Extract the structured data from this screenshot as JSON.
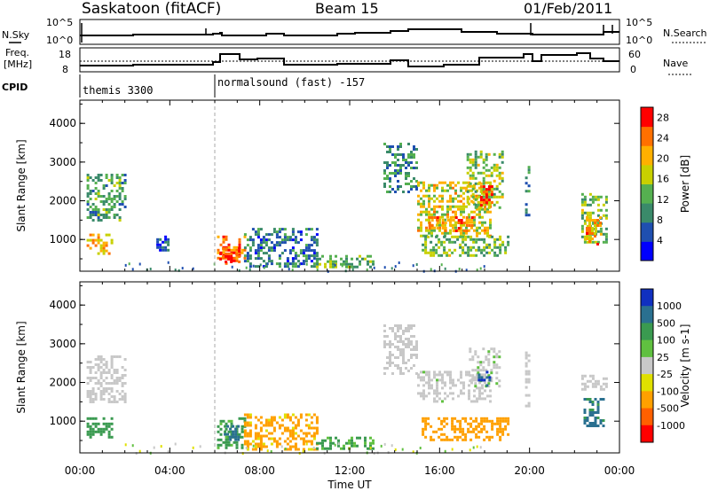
{
  "header": {
    "title": "Saskatoon (fitACF)",
    "beam": "Beam 15",
    "date": "01/Feb/2011"
  },
  "noise_panel": {
    "left_label": "N.Sky",
    "right_label": "N.Search",
    "left_ticks": [
      "10^5",
      "10^0"
    ],
    "right_ticks": [
      "10^5",
      "10^0"
    ]
  },
  "freq_panel": {
    "left_label_line1": "Freq.",
    "left_label_line2": "[MHz]",
    "right_label": "Nave",
    "left_ticks": [
      "18",
      "8"
    ],
    "right_ticks": [
      "60",
      "0"
    ]
  },
  "cpid": {
    "label": "CPID",
    "segments": [
      {
        "start_hour": 0.0,
        "name": "themis 3300"
      },
      {
        "start_hour": 6.0,
        "name": "normalsound (fast) -157"
      }
    ]
  },
  "time_axis": {
    "label": "Time UT",
    "ticks": [
      "00:00",
      "04:00",
      "08:00",
      "12:00",
      "16:00",
      "20:00",
      "00:00"
    ],
    "range_hours": [
      0,
      24
    ]
  },
  "chart_data": [
    {
      "type": "heatmap",
      "quantity": "Power",
      "ylabel": "Slant Range [km]",
      "yticks": [
        "1000",
        "2000",
        "3000",
        "4000"
      ],
      "ylim": [
        180,
        4600
      ],
      "colorbar": {
        "label": "Power [dB]",
        "ticks": [
          "4",
          "8",
          "12",
          "16",
          "20",
          "24",
          "28"
        ],
        "range": [
          0,
          30
        ],
        "colors": [
          "#0000ff",
          "#1f4fb0",
          "#3a8a6a",
          "#55b050",
          "#c8d000",
          "#ffb000",
          "#ff7000",
          "#ff0000"
        ]
      },
      "regions": [
        {
          "t": [
            0.3,
            2.0
          ],
          "r": [
            1500,
            2700
          ],
          "v": 11
        },
        {
          "t": [
            0.3,
            1.4
          ],
          "r": [
            650,
            1150
          ],
          "v": 20
        },
        {
          "t": [
            3.4,
            3.9
          ],
          "r": [
            700,
            1100
          ],
          "v": 6
        },
        {
          "t": [
            6.1,
            7.3
          ],
          "r": [
            350,
            1100
          ],
          "v": 24
        },
        {
          "t": [
            6.2,
            7.1
          ],
          "r": [
            450,
            800
          ],
          "v": 28
        },
        {
          "t": [
            7.3,
            10.5
          ],
          "r": [
            300,
            1300
          ],
          "v": 8
        },
        {
          "t": [
            10.5,
            13.0
          ],
          "r": [
            300,
            600
          ],
          "v": 13
        },
        {
          "t": [
            13.5,
            15.0
          ],
          "r": [
            2200,
            3500
          ],
          "v": 9
        },
        {
          "t": [
            15.0,
            18.2
          ],
          "r": [
            1100,
            2500
          ],
          "v": 18
        },
        {
          "t": [
            15.5,
            17.5
          ],
          "r": [
            1200,
            1600
          ],
          "v": 24
        },
        {
          "t": [
            17.2,
            18.8
          ],
          "r": [
            1800,
            3300
          ],
          "v": 15
        },
        {
          "t": [
            17.8,
            18.3
          ],
          "r": [
            1900,
            2400
          ],
          "v": 28
        },
        {
          "t": [
            15.2,
            19.0
          ],
          "r": [
            600,
            1100
          ],
          "v": 14
        },
        {
          "t": [
            19.8,
            20.0
          ],
          "r": [
            1400,
            2900
          ],
          "v": 10
        },
        {
          "t": [
            22.3,
            23.4
          ],
          "r": [
            900,
            2200
          ],
          "v": 14
        },
        {
          "t": [
            22.5,
            23.2
          ],
          "r": [
            900,
            1600
          ],
          "v": 22
        }
      ]
    },
    {
      "type": "heatmap",
      "quantity": "Velocity",
      "ylabel": "Slant Range [km]",
      "yticks": [
        "1000",
        "2000",
        "3000",
        "4000"
      ],
      "ylim": [
        180,
        4600
      ],
      "colorbar": {
        "label": "Velocity [m s-1]",
        "ticks": [
          "1000",
          "500",
          "100",
          "25",
          "-25",
          "-100",
          "-500",
          "-1000"
        ],
        "colors": [
          "#1030c0",
          "#2a7090",
          "#3a9a50",
          "#60c040",
          "#c8c8c8",
          "#e0e000",
          "#ffa000",
          "#ff6000",
          "#ff0000"
        ]
      },
      "regions": [
        {
          "t": [
            0.3,
            2.0
          ],
          "r": [
            1500,
            2700
          ],
          "v": 0
        },
        {
          "t": [
            0.3,
            1.4
          ],
          "r": [
            600,
            1100
          ],
          "v": 200
        },
        {
          "t": [
            6.1,
            7.3
          ],
          "r": [
            300,
            1100
          ],
          "v": 150
        },
        {
          "t": [
            6.4,
            7.0
          ],
          "r": [
            500,
            900
          ],
          "v": 700
        },
        {
          "t": [
            7.3,
            10.5
          ],
          "r": [
            300,
            1200
          ],
          "v": -150
        },
        {
          "t": [
            10.5,
            13.0
          ],
          "r": [
            300,
            600
          ],
          "v": 120
        },
        {
          "t": [
            13.5,
            15.0
          ],
          "r": [
            2200,
            3500
          ],
          "v": 0
        },
        {
          "t": [
            15.0,
            18.2
          ],
          "r": [
            1500,
            2300
          ],
          "v": 5
        },
        {
          "t": [
            17.3,
            18.7
          ],
          "r": [
            1900,
            2900
          ],
          "v": 10
        },
        {
          "t": [
            17.7,
            18.2
          ],
          "r": [
            1900,
            2300
          ],
          "v": 900
        },
        {
          "t": [
            15.2,
            19.0
          ],
          "r": [
            500,
            1100
          ],
          "v": -300
        },
        {
          "t": [
            19.8,
            20.0
          ],
          "r": [
            1400,
            2800
          ],
          "v": 0
        },
        {
          "t": [
            22.3,
            23.4
          ],
          "r": [
            1800,
            2200
          ],
          "v": 0
        },
        {
          "t": [
            22.4,
            23.3
          ],
          "r": [
            900,
            1600
          ],
          "v": 600
        }
      ]
    }
  ]
}
